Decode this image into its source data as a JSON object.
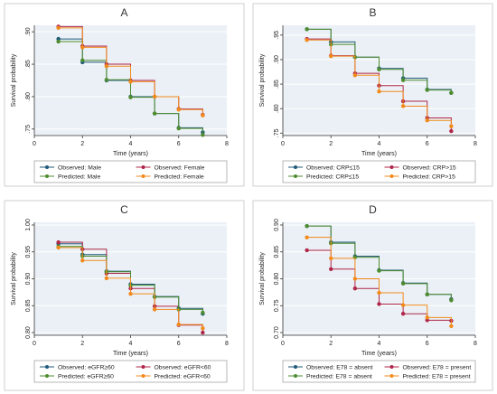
{
  "colors": {
    "blue": "#1f5a7a",
    "red": "#b0264a",
    "green": "#4f8c2f",
    "orange": "#f28a1c",
    "panel_bg": "#eaf0f5",
    "frame": "#1a1a1a",
    "grid": "#ffffff",
    "legend_bg": "#ffffff"
  },
  "chart_data": [
    {
      "type": "line",
      "step": true,
      "title": "A",
      "xlabel": "Time (years)",
      "ylabel": "Survival probability",
      "xlim": [
        0,
        8
      ],
      "ylim": [
        0.74,
        0.91
      ],
      "xticks": [
        0,
        2,
        4,
        6,
        8
      ],
      "yticks": [
        0.75,
        0.8,
        0.85,
        0.9
      ],
      "ytick_labels": [
        ".75",
        ".80",
        ".85",
        ".90"
      ],
      "grid": true,
      "legend_position": "bottom",
      "x": [
        1,
        2,
        3,
        4,
        5,
        6,
        7
      ],
      "series": [
        {
          "name": "Observed: Male",
          "color_key": "blue",
          "values": [
            0.889,
            0.853,
            0.825,
            0.8,
            0.774,
            0.752,
            0.745
          ]
        },
        {
          "name": "Observed: Female",
          "color_key": "red",
          "values": [
            0.908,
            0.878,
            0.85,
            0.825,
            0.8,
            0.781,
            0.772
          ]
        },
        {
          "name": "Predicted: Male",
          "color_key": "green",
          "values": [
            0.885,
            0.856,
            0.826,
            0.799,
            0.774,
            0.751,
            0.741
          ]
        },
        {
          "name": "Predicted: Female",
          "color_key": "orange",
          "values": [
            0.906,
            0.876,
            0.847,
            0.823,
            0.8,
            0.78,
            0.771
          ]
        }
      ]
    },
    {
      "type": "line",
      "step": true,
      "title": "B",
      "xlabel": "Time (years)",
      "ylabel": "Survival probability",
      "xlim": [
        0,
        8
      ],
      "ylim": [
        0.745,
        0.97
      ],
      "xticks": [
        0,
        2,
        4,
        6,
        8
      ],
      "yticks": [
        0.75,
        0.8,
        0.85,
        0.9,
        0.95
      ],
      "ytick_labels": [
        ".75",
        ".80",
        ".85",
        ".90",
        ".95"
      ],
      "grid": true,
      "legend_position": "bottom",
      "x": [
        1,
        2,
        3,
        4,
        5,
        6,
        7
      ],
      "series": [
        {
          "name": "Observed: CRP≤15",
          "color_key": "blue",
          "values": [
            0.962,
            0.936,
            0.905,
            0.882,
            0.862,
            0.839,
            0.832
          ]
        },
        {
          "name": "Observed: CRP>15",
          "color_key": "red",
          "values": [
            0.942,
            0.908,
            0.872,
            0.847,
            0.815,
            0.781,
            0.754
          ]
        },
        {
          "name": "Predicted: CRP≤15",
          "color_key": "green",
          "values": [
            0.962,
            0.931,
            0.905,
            0.88,
            0.858,
            0.838,
            0.832
          ]
        },
        {
          "name": "Predicted: CRP>15",
          "color_key": "orange",
          "values": [
            0.94,
            0.907,
            0.868,
            0.835,
            0.805,
            0.776,
            0.764
          ]
        }
      ]
    },
    {
      "type": "line",
      "step": true,
      "title": "C",
      "xlabel": "Time (years)",
      "ylabel": "Survival probability",
      "xlim": [
        0,
        8
      ],
      "ylim": [
        0.795,
        1.005
      ],
      "xticks": [
        0,
        2,
        4,
        6,
        8
      ],
      "yticks": [
        0.8,
        0.85,
        0.9,
        0.95,
        1.0
      ],
      "ytick_labels": [
        "0.80",
        "0.85",
        "0.90",
        "0.95",
        "1.00"
      ],
      "grid": true,
      "legend_position": "bottom",
      "x": [
        1,
        2,
        3,
        4,
        5,
        6,
        7
      ],
      "series": [
        {
          "name": "Observed: eGFR≥60",
          "color_key": "blue",
          "values": [
            0.965,
            0.945,
            0.914,
            0.89,
            0.867,
            0.845,
            0.835
          ]
        },
        {
          "name": "Observed: eGFR<60",
          "color_key": "red",
          "values": [
            0.968,
            0.955,
            0.91,
            0.882,
            0.849,
            0.814,
            0.8
          ]
        },
        {
          "name": "Predicted: eGFR≥60",
          "color_key": "green",
          "values": [
            0.96,
            0.942,
            0.913,
            0.888,
            0.866,
            0.843,
            0.837
          ]
        },
        {
          "name": "Predicted: eGFR<60",
          "color_key": "orange",
          "values": [
            0.958,
            0.934,
            0.901,
            0.872,
            0.843,
            0.815,
            0.808
          ]
        }
      ]
    },
    {
      "type": "line",
      "step": true,
      "title": "D",
      "xlabel": "Time (years)",
      "ylabel": "Survival probability",
      "xlim": [
        0,
        8
      ],
      "ylim": [
        0.695,
        0.905
      ],
      "xticks": [
        0,
        2,
        4,
        6,
        8
      ],
      "yticks": [
        0.7,
        0.75,
        0.8,
        0.85,
        0.9
      ],
      "ytick_labels": [
        "0.70",
        "0.75",
        "0.80",
        "0.85",
        "0.90"
      ],
      "grid": true,
      "legend_position": "bottom",
      "x": [
        1,
        2,
        3,
        4,
        5,
        6,
        7
      ],
      "series": [
        {
          "name": "Observed: E78 = absent",
          "color_key": "blue",
          "values": [
            0.898,
            0.868,
            0.842,
            0.816,
            0.792,
            0.771,
            0.762
          ]
        },
        {
          "name": "Observed: E78 = present",
          "color_key": "red",
          "values": [
            0.853,
            0.818,
            0.782,
            0.753,
            0.735,
            0.723,
            0.722
          ]
        },
        {
          "name": "Predicted: E78 = absent",
          "color_key": "green",
          "values": [
            0.898,
            0.866,
            0.84,
            0.815,
            0.791,
            0.771,
            0.76
          ]
        },
        {
          "name": "Predicted: E78 = present",
          "color_key": "orange",
          "values": [
            0.877,
            0.838,
            0.8,
            0.774,
            0.751,
            0.728,
            0.712
          ]
        }
      ]
    }
  ]
}
